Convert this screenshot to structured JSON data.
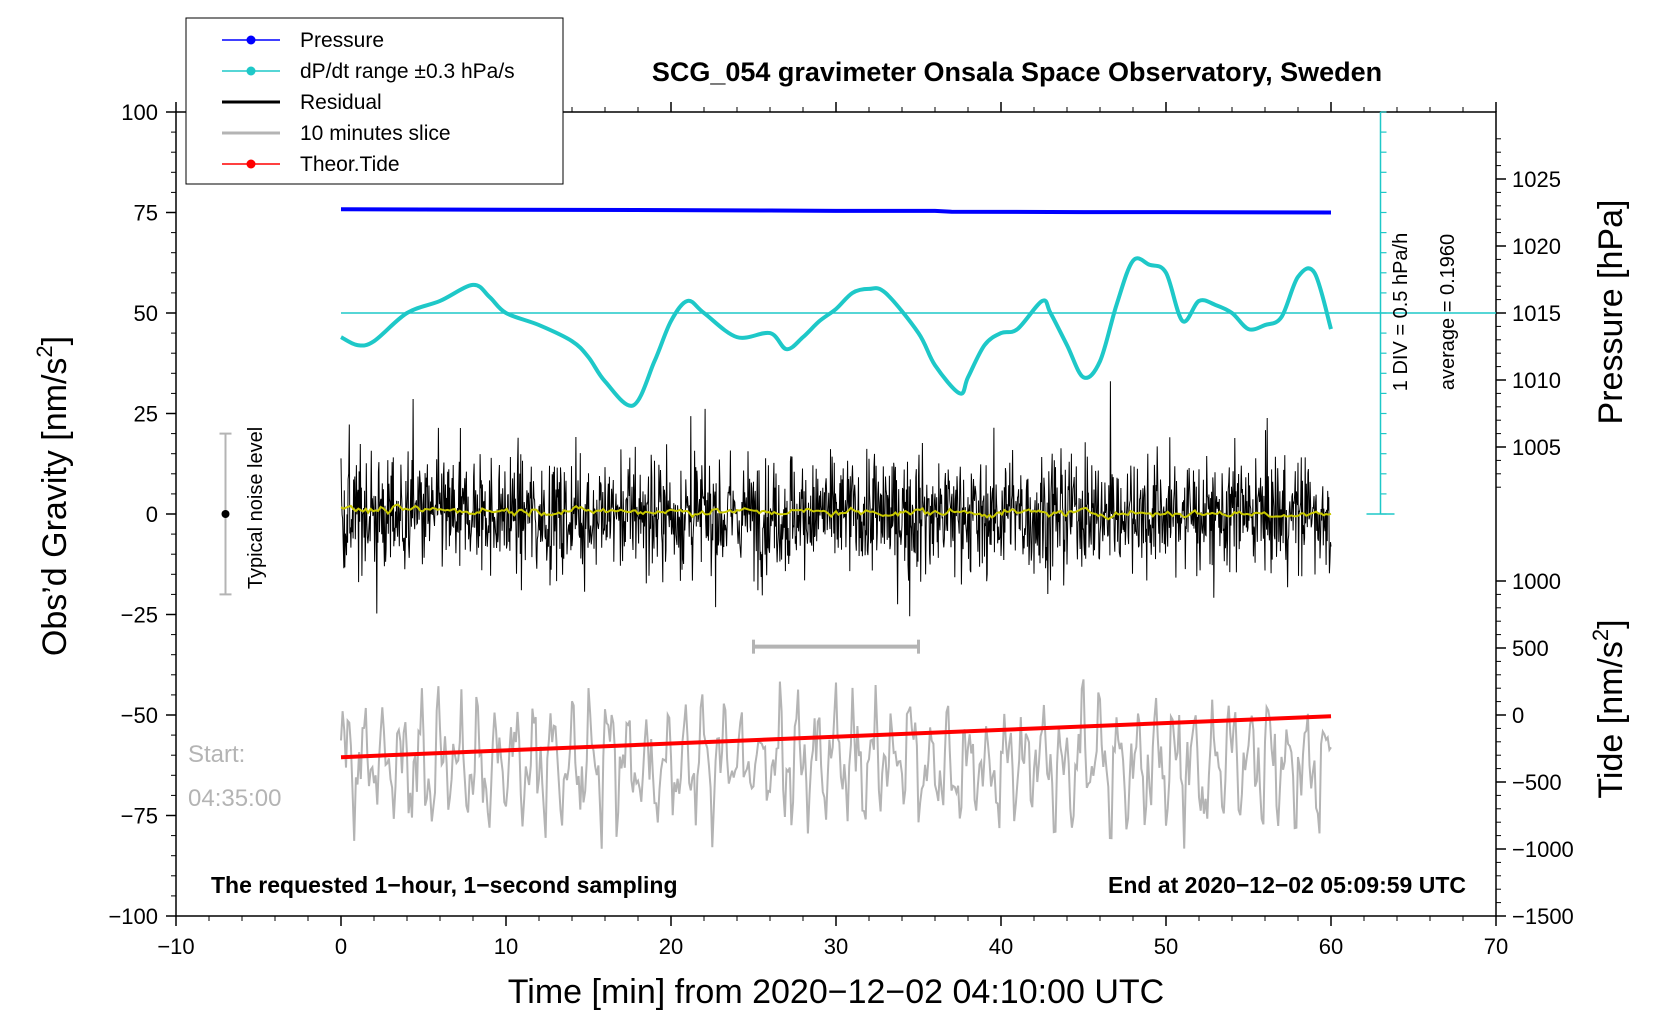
{
  "chart_data": {
    "type": "line",
    "title": "SCG_054 gravimeter Onsala Space Observatory, Sweden",
    "xlabel": "Time [min] from 2020−12−02 04:10:00 UTC",
    "ylabel": "Obs’d Gravity [nm/s²]",
    "ylabel_right_top": "Pressure [hPa]",
    "ylabel_right_bottom": "Tide [nm/s²]",
    "xlim": [
      -10,
      70
    ],
    "ylim": [
      -100,
      100
    ],
    "pressure_lim": [
      1000,
      1030
    ],
    "tide_lim": [
      -1500,
      1000
    ],
    "x_ticks": [
      -10,
      0,
      10,
      20,
      30,
      40,
      50,
      60,
      70
    ],
    "x_tick_labels": [
      "−10",
      "0",
      "10",
      "20",
      "30",
      "40",
      "50",
      "60",
      "70"
    ],
    "y_ticks": [
      100,
      75,
      50,
      25,
      0,
      -25,
      -50,
      -75,
      -100
    ],
    "y_tick_labels": [
      "100",
      "75",
      "50",
      "25",
      "0",
      "−25",
      "−50",
      "−75",
      "−100"
    ],
    "pressure_ticks": [
      1025,
      1020,
      1015,
      1010,
      1005
    ],
    "pressure_tick_labels": [
      "1025",
      "1020",
      "1015",
      "1010",
      "1005"
    ],
    "tide_ticks": [
      1000,
      500,
      0,
      -500,
      -1000,
      -1500
    ],
    "tide_tick_labels": [
      "1000",
      "500",
      "0",
      "−500",
      "−1000",
      "−1500"
    ],
    "legend": [
      {
        "label": "Pressure",
        "color": "#0000ff",
        "marker": true
      },
      {
        "label": "dP/dt range ±0.3 hPa/s",
        "color": "#1ec8c8",
        "marker": true
      },
      {
        "label": "Residual",
        "color": "#000000",
        "marker": false
      },
      {
        "label": "10 minutes slice",
        "color": "#b4b4b4",
        "marker": false
      },
      {
        "label": "Theor.Tide",
        "color": "#ff0000",
        "marker": true
      }
    ],
    "series": [
      {
        "name": "Pressure",
        "color": "#0000ff",
        "x": [
          0,
          10,
          20,
          26,
          30,
          36,
          37,
          45,
          50,
          60
        ],
        "y": [
          75.8,
          75.7,
          75.6,
          75.5,
          75.4,
          75.4,
          75.2,
          75.1,
          75.1,
          75.0
        ]
      },
      {
        "name": "dP/dt",
        "color": "#1ec8c8",
        "x": [
          0,
          1,
          2,
          4,
          6,
          8,
          9,
          10,
          12,
          14,
          15,
          16,
          17.7,
          19,
          20,
          21,
          22,
          24,
          26,
          27,
          28,
          29,
          30,
          31,
          32,
          33,
          35,
          36,
          37.5,
          38,
          39,
          40,
          41,
          42.5,
          43,
          44,
          45,
          46,
          47,
          48,
          49,
          50,
          51,
          52,
          53,
          54,
          55,
          56,
          57,
          58,
          59,
          60
        ],
        "y": [
          44,
          42,
          43,
          50,
          53,
          57,
          54,
          50,
          47,
          43,
          39,
          33,
          27,
          38,
          48,
          53,
          50,
          44,
          45,
          41,
          44,
          48,
          51,
          55,
          56,
          55,
          45,
          37,
          30,
          34,
          42,
          45,
          46,
          53,
          50,
          42,
          34,
          38,
          52,
          63,
          62,
          60,
          48,
          53,
          52,
          50,
          46,
          47,
          49,
          59,
          60,
          46
        ]
      },
      {
        "name": "dP/dt zero line",
        "color": "#1ec8c8",
        "x": [
          0,
          70
        ],
        "y": [
          50,
          50
        ]
      },
      {
        "name": "Theor.Tide",
        "color": "#ff0000",
        "x": [
          0,
          60
        ],
        "y": [
          -60.5,
          -50.3
        ]
      },
      {
        "name": "Residual",
        "color": "#000000",
        "noise_amplitude": 25,
        "x_range": [
          0,
          60
        ]
      },
      {
        "name": "Residual smoothed",
        "color": "#c8c800",
        "x_range": [
          0,
          60
        ],
        "y_level": 1
      },
      {
        "name": "10 minutes slice",
        "color": "#b4b4b4",
        "x_range": [
          0,
          60
        ],
        "center": -62,
        "amplitude": 18
      }
    ],
    "pressure_scale": {
      "label_div": "1 DIV = 0.5 hPa/h",
      "label_avg": "average = 0.1960"
    },
    "noise_level": {
      "label": "Typical noise level",
      "range": [
        -20,
        20
      ],
      "center": 0,
      "x": -7
    },
    "slice_marker": {
      "x_range": [
        25,
        35
      ],
      "y": -33
    },
    "annotations": {
      "start_label": "Start:",
      "start_time": "04:35:00",
      "left_note": "The requested 1−hour, 1−second sampling",
      "right_note": "End at 2020−12−02 05:09:59 UTC"
    }
  }
}
